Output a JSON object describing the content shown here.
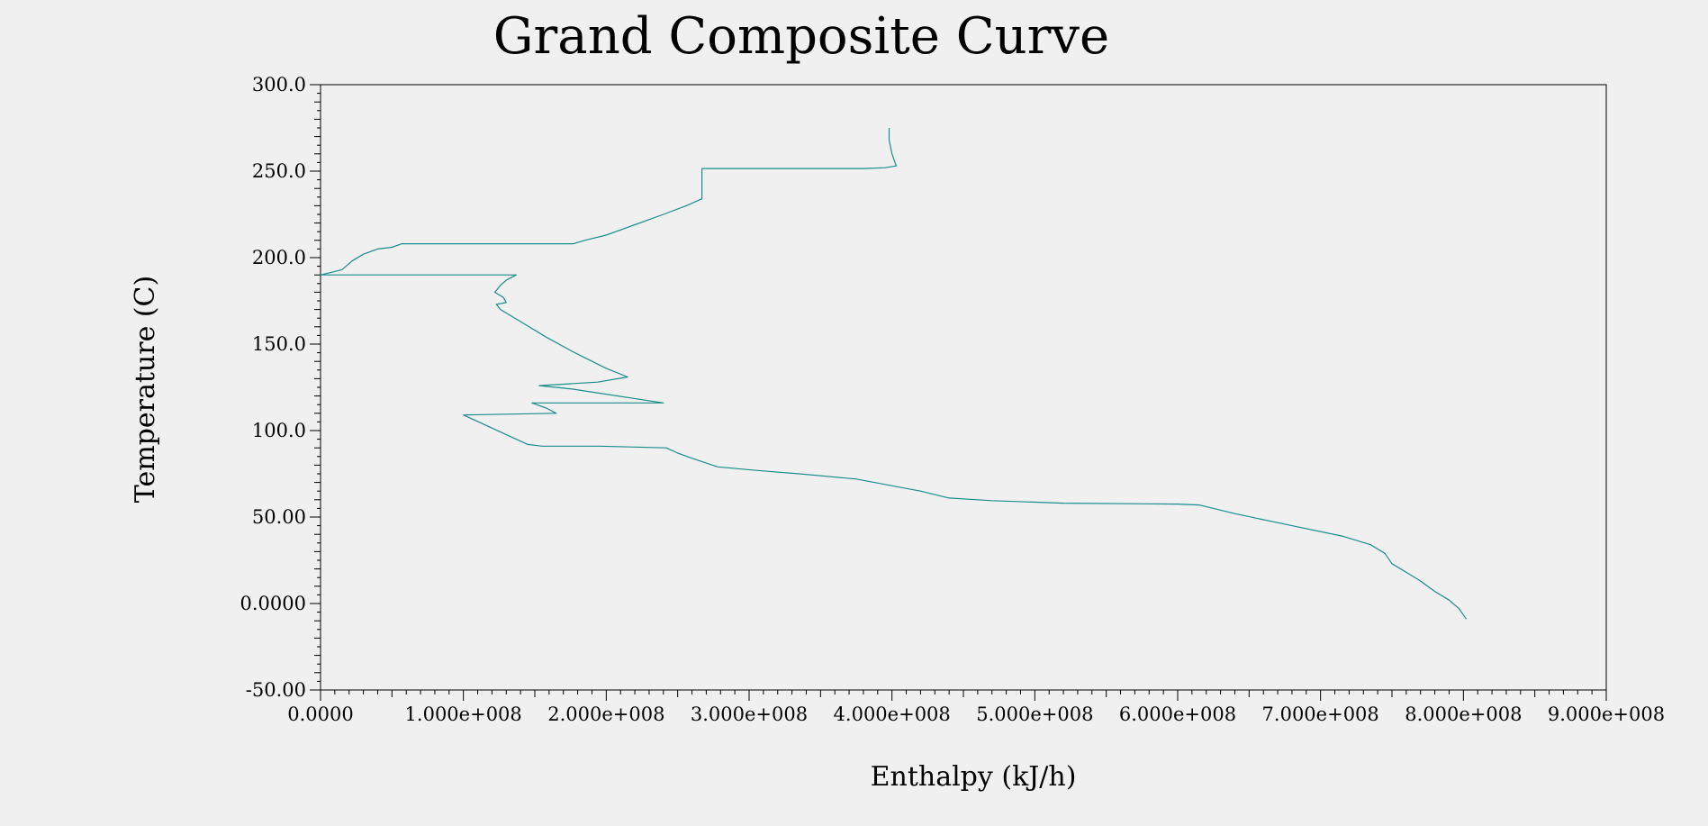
{
  "chart_data": {
    "type": "line",
    "title": "Grand Composite Curve",
    "xlabel": "Enthalpy (kJ/h)",
    "ylabel": "Temperature (C)",
    "xlim": [
      0,
      900000000
    ],
    "ylim": [
      -50,
      300
    ],
    "x_ticks": [
      0,
      100000000,
      200000000,
      300000000,
      400000000,
      500000000,
      600000000,
      700000000,
      800000000,
      900000000
    ],
    "x_tick_labels": [
      "0.0000",
      "1.000e+008",
      "2.000e+008",
      "3.000e+008",
      "4.000e+008",
      "5.000e+008",
      "6.000e+008",
      "7.000e+008",
      "8.000e+008",
      "9.000e+008"
    ],
    "y_ticks": [
      300,
      250,
      200,
      150,
      100,
      50,
      0,
      -50
    ],
    "y_tick_labels": [
      "300.0",
      "250.0",
      "200.0",
      "150.0",
      "100.0",
      "50.00",
      "0.0000",
      "-50.00"
    ],
    "grid": false,
    "line_color": "#1a8c8c",
    "series": [
      {
        "name": "",
        "points": [
          [
            398000000,
            275
          ],
          [
            398000000,
            268
          ],
          [
            400000000,
            260
          ],
          [
            403000000,
            253
          ],
          [
            395000000,
            252
          ],
          [
            380000000,
            251.5
          ],
          [
            267000000,
            251.5
          ],
          [
            267000000,
            234
          ],
          [
            256000000,
            230
          ],
          [
            240000000,
            225
          ],
          [
            220000000,
            219
          ],
          [
            200000000,
            213
          ],
          [
            185000000,
            210
          ],
          [
            177000000,
            208
          ],
          [
            57000000,
            208
          ],
          [
            50000000,
            206
          ],
          [
            40000000,
            205
          ],
          [
            30000000,
            202
          ],
          [
            22000000,
            198
          ],
          [
            15000000,
            193
          ],
          [
            10000000,
            192
          ],
          [
            0,
            190
          ],
          [
            137000000,
            190
          ],
          [
            130000000,
            187
          ],
          [
            126000000,
            184
          ],
          [
            122000000,
            180
          ],
          [
            128000000,
            177
          ],
          [
            130000000,
            174
          ],
          [
            123000000,
            173
          ],
          [
            126000000,
            170
          ],
          [
            140000000,
            163
          ],
          [
            158000000,
            154
          ],
          [
            178000000,
            145
          ],
          [
            200000000,
            136
          ],
          [
            215000000,
            131
          ],
          [
            194000000,
            128
          ],
          [
            153000000,
            126
          ],
          [
            176000000,
            124
          ],
          [
            240000000,
            116
          ],
          [
            148000000,
            116
          ],
          [
            158000000,
            113
          ],
          [
            165000000,
            110
          ],
          [
            100000000,
            109
          ],
          [
            145000000,
            92
          ],
          [
            155000000,
            91
          ],
          [
            195000000,
            91
          ],
          [
            242000000,
            90
          ],
          [
            250000000,
            87
          ],
          [
            260000000,
            84
          ],
          [
            278000000,
            79
          ],
          [
            305000000,
            77
          ],
          [
            335000000,
            75
          ],
          [
            375000000,
            72
          ],
          [
            420000000,
            65
          ],
          [
            440000000,
            61
          ],
          [
            470000000,
            59.5
          ],
          [
            520000000,
            58
          ],
          [
            600000000,
            57.5
          ],
          [
            615000000,
            57
          ],
          [
            640000000,
            52
          ],
          [
            680000000,
            45
          ],
          [
            715000000,
            39
          ],
          [
            735000000,
            34
          ],
          [
            745000000,
            29
          ],
          [
            750000000,
            23
          ],
          [
            760000000,
            18
          ],
          [
            770000000,
            13
          ],
          [
            780000000,
            7
          ],
          [
            790000000,
            2
          ],
          [
            797000000,
            -3
          ],
          [
            802000000,
            -9
          ]
        ]
      }
    ]
  }
}
